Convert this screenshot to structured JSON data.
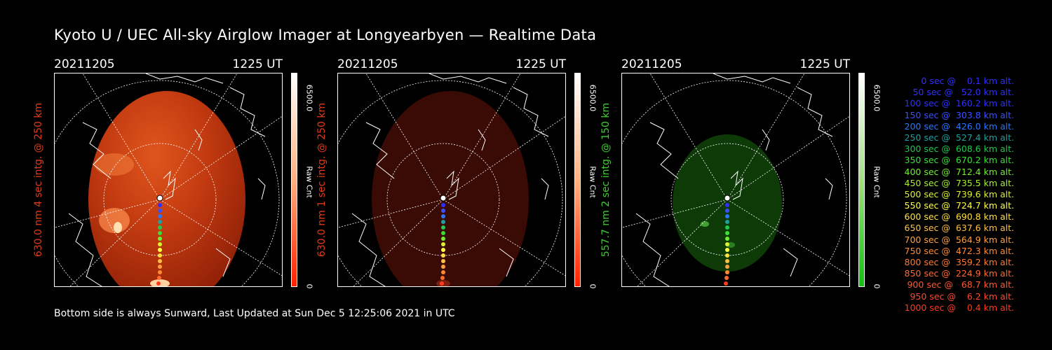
{
  "title": "Kyoto U / UEC All-sky Airglow Imager at Longyearbyen — Realtime Data",
  "footer": "Bottom side is always Sunward, Last Updated at Sun Dec  5 12:25:06 2021 in UTC",
  "panels": [
    {
      "date": "20211205",
      "time": "1225 UT",
      "ylabel": "630.0 nm 4 sec intg. @ 250 km",
      "ylabel_color": "#e23a1a",
      "colorbar": {
        "max": "6500.0",
        "label": "Raw Cnt",
        "min": "0",
        "top_color": "#ffffff",
        "bottom_color": "#ff2000"
      }
    },
    {
      "date": "20211205",
      "time": "1225 UT",
      "ylabel": "630.0 nm 1 sec intg. @ 250 km",
      "ylabel_color": "#e23a1a",
      "colorbar": {
        "max": "6500.0",
        "label": "Raw Cnt",
        "min": "0",
        "top_color": "#ffffff",
        "bottom_color": "#ff2000"
      }
    },
    {
      "date": "20211205",
      "time": "1225 UT",
      "ylabel": "557.7 nm 2 sec intg. @ 150 km",
      "ylabel_color": "#3ecf2e",
      "colorbar": {
        "max": "6500.0",
        "label": "Raw Cnt",
        "min": "0",
        "top_color": "#ffffff",
        "bottom_color": "#10c010"
      }
    }
  ],
  "trajectory_legend": [
    {
      "text": "0 sec @    0.1 km alt.",
      "color": "#3030ff"
    },
    {
      "text": "50 sec @   52.0 km alt.",
      "color": "#3030ff"
    },
    {
      "text": "100 sec @  160.2 km alt.",
      "color": "#3030ff"
    },
    {
      "text": "150 sec @  303.8 km alt.",
      "color": "#3a50ff"
    },
    {
      "text": "200 sec @  426.0 km alt.",
      "color": "#2878ff"
    },
    {
      "text": "250 sec @  527.4 km alt.",
      "color": "#1ea0a0"
    },
    {
      "text": "300 sec @  608.6 km alt.",
      "color": "#20c850"
    },
    {
      "text": "350 sec @  670.2 km alt.",
      "color": "#38e038"
    },
    {
      "text": "400 sec @  712.4 km alt.",
      "color": "#70ee30"
    },
    {
      "text": "450 sec @  735.5 km alt.",
      "color": "#a8f030"
    },
    {
      "text": "500 sec @  739.6 km alt.",
      "color": "#dcf030"
    },
    {
      "text": "550 sec @  724.7 km alt.",
      "color": "#ffff40"
    },
    {
      "text": "600 sec @  690.8 km alt.",
      "color": "#ffe040"
    },
    {
      "text": "650 sec @  637.6 km alt.",
      "color": "#ffc040"
    },
    {
      "text": "700 sec @  564.9 km alt.",
      "color": "#ffa040"
    },
    {
      "text": "750 sec @  472.3 km alt.",
      "color": "#ff8a30"
    },
    {
      "text": "800 sec @  359.2 km alt.",
      "color": "#ff7a30"
    },
    {
      "text": "850 sec @  224.9 km alt.",
      "color": "#ff6a30"
    },
    {
      "text": "900 sec @   68.7 km alt.",
      "color": "#ff5a30"
    },
    {
      "text": "950 sec @    6.2 km alt.",
      "color": "#ff4a30"
    },
    {
      "text": "1000 sec @    0.4 km alt.",
      "color": "#ff3a20"
    }
  ]
}
